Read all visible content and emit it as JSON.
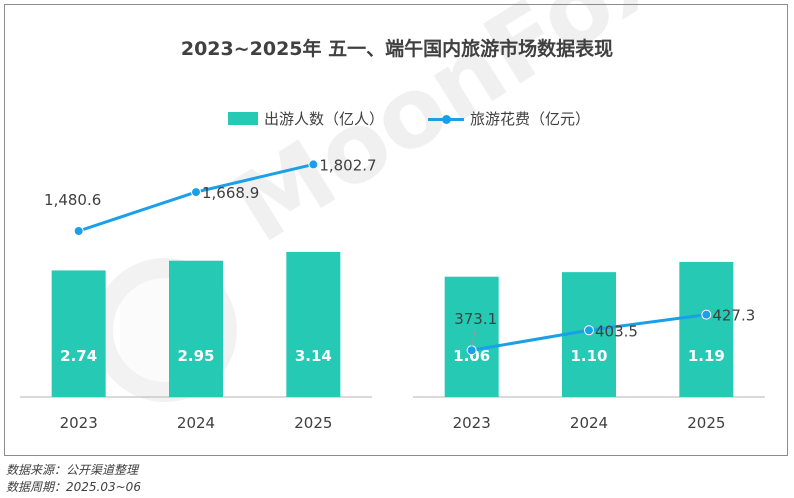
{
  "title": "2023~2025年 五一、端午国内旅游市场数据表现",
  "legend": {
    "bar_label": "出游人数（亿人）",
    "line_label": "旅游花费（亿元）"
  },
  "watermark": "MoonFox",
  "colors": {
    "bar": "#26c9b4",
    "line": "#1aa0e8",
    "text": "#404040",
    "axis": "#b4b4b4"
  },
  "chart_data": [
    {
      "type": "bar+line",
      "categories": [
        "2023",
        "2024",
        "2025"
      ],
      "series": [
        {
          "name": "出游人数（亿人）",
          "type": "bar",
          "values": [
            2.74,
            2.95,
            3.14
          ],
          "labels": [
            "2.74",
            "2.95",
            "3.14"
          ]
        },
        {
          "name": "旅游花费（亿元）",
          "type": "line",
          "values": [
            1480.6,
            1668.9,
            1802.7
          ],
          "labels": [
            "1,480.6",
            "1,668.9",
            "1,802.7"
          ]
        }
      ]
    },
    {
      "type": "bar+line",
      "categories": [
        "2023",
        "2024",
        "2025"
      ],
      "series": [
        {
          "name": "出游人数（亿人）",
          "type": "bar",
          "values": [
            1.06,
            1.1,
            1.19
          ],
          "labels": [
            "1.06",
            "1.10",
            "1.19"
          ]
        },
        {
          "name": "旅游花费（亿元）",
          "type": "line",
          "values": [
            373.1,
            403.5,
            427.3
          ],
          "labels": [
            "373.1",
            "403.5",
            "427.3"
          ]
        }
      ]
    }
  ],
  "footer": {
    "source": "数据来源：公开渠道整理",
    "period": "数据周期：2025.03~06"
  }
}
